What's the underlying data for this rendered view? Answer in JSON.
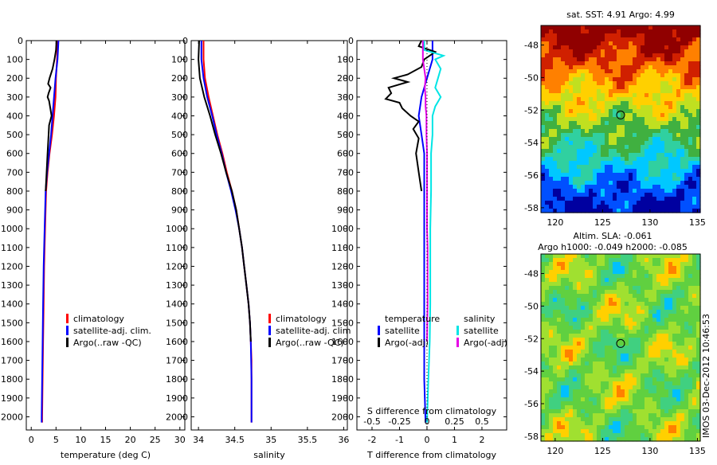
{
  "chart_data": [
    {
      "type": "line",
      "id": "temperature-profile",
      "xlabel": "temperature (deg C)",
      "ylabel": "",
      "xlim": [
        -1,
        31
      ],
      "ylim": [
        2070,
        0
      ],
      "xticks": [
        0,
        5,
        10,
        15,
        20,
        25,
        30
      ],
      "xtick_labels": [
        "0",
        "5",
        "10",
        "15",
        "20",
        "25",
        "30"
      ],
      "yticks": [
        0,
        100,
        200,
        300,
        400,
        500,
        600,
        700,
        800,
        900,
        1000,
        1100,
        1200,
        1300,
        1400,
        1500,
        1600,
        1700,
        1800,
        1900,
        2000
      ],
      "ytick_labels": [
        "0",
        "100",
        "200",
        "300",
        "400",
        "500",
        "600",
        "700",
        "800",
        "900",
        "1000",
        "1100",
        "1200",
        "1300",
        "1400",
        "1500",
        "1600",
        "1700",
        "1800",
        "1900",
        "2000"
      ],
      "legend": {
        "position": "lower-middle",
        "items": [
          {
            "label": "climatology",
            "color": "#ff0000"
          },
          {
            "label": "satellite-adj. clim.",
            "color": "#0000ff"
          },
          {
            "label": "Argo(..raw -QC)",
            "color": "#000000"
          }
        ]
      },
      "series": [
        {
          "name": "climatology",
          "color": "#ff0000",
          "points": [
            [
              5.3,
              0
            ],
            [
              5.2,
              100
            ],
            [
              5.0,
              200
            ],
            [
              4.9,
              300
            ],
            [
              4.6,
              400
            ],
            [
              4.2,
              500
            ],
            [
              3.7,
              600
            ],
            [
              3.3,
              700
            ],
            [
              3.0,
              800
            ],
            [
              2.8,
              1000
            ],
            [
              2.6,
              1200
            ],
            [
              2.5,
              1400
            ],
            [
              2.4,
              1600
            ],
            [
              2.3,
              1800
            ],
            [
              2.2,
              2000
            ],
            [
              2.2,
              2030
            ]
          ]
        },
        {
          "name": "satellite-adj. clim.",
          "color": "#0000ff",
          "points": [
            [
              5.5,
              0
            ],
            [
              5.3,
              100
            ],
            [
              4.9,
              200
            ],
            [
              4.6,
              300
            ],
            [
              4.3,
              400
            ],
            [
              4.0,
              500
            ],
            [
              3.6,
              600
            ],
            [
              3.2,
              700
            ],
            [
              2.9,
              800
            ],
            [
              2.7,
              1000
            ],
            [
              2.5,
              1200
            ],
            [
              2.4,
              1400
            ],
            [
              2.3,
              1600
            ],
            [
              2.2,
              1800
            ],
            [
              2.1,
              2000
            ],
            [
              2.1,
              2030
            ]
          ]
        },
        {
          "name": "Argo(..raw -QC)",
          "color": "#000000",
          "points": [
            [
              5.1,
              0
            ],
            [
              5.0,
              50
            ],
            [
              4.7,
              100
            ],
            [
              4.3,
              150
            ],
            [
              3.7,
              200
            ],
            [
              3.4,
              230
            ],
            [
              3.9,
              250
            ],
            [
              3.5,
              280
            ],
            [
              3.3,
              300
            ],
            [
              3.6,
              320
            ],
            [
              3.8,
              350
            ],
            [
              4.1,
              400
            ],
            [
              3.6,
              450
            ],
            [
              3.5,
              500
            ],
            [
              3.3,
              600
            ],
            [
              3.1,
              700
            ],
            [
              2.9,
              800
            ]
          ]
        }
      ]
    },
    {
      "type": "line",
      "id": "salinity-profile",
      "xlabel": "salinity",
      "ylabel": "",
      "xlim": [
        33.9,
        36.05
      ],
      "ylim": [
        2070,
        0
      ],
      "xticks": [
        34,
        34.5,
        35,
        35.5,
        36
      ],
      "xtick_labels": [
        "34",
        "34.5",
        "35",
        "35.5",
        "36"
      ],
      "legend": {
        "position": "lower-right",
        "items": [
          {
            "label": "climatology",
            "color": "#ff0000"
          },
          {
            "label": "satellite-adj. clim",
            "color": "#0000ff"
          },
          {
            "label": "Argo(..raw -QC)",
            "color": "#000000"
          }
        ]
      },
      "series": [
        {
          "name": "climatology",
          "color": "#ff0000",
          "points": [
            [
              34.07,
              0
            ],
            [
              34.07,
              100
            ],
            [
              34.09,
              200
            ],
            [
              34.14,
              300
            ],
            [
              34.2,
              400
            ],
            [
              34.26,
              500
            ],
            [
              34.33,
              600
            ],
            [
              34.39,
              700
            ],
            [
              34.46,
              800
            ],
            [
              34.52,
              900
            ],
            [
              34.56,
              1000
            ],
            [
              34.6,
              1100
            ],
            [
              34.63,
              1200
            ],
            [
              34.66,
              1300
            ],
            [
              34.69,
              1400
            ],
            [
              34.71,
              1500
            ],
            [
              34.72,
              1600
            ],
            [
              34.73,
              1700
            ],
            [
              34.73,
              1800
            ],
            [
              34.73,
              2030
            ]
          ]
        },
        {
          "name": "satellite-adj. clim.",
          "color": "#0000ff",
          "points": [
            [
              34.04,
              0
            ],
            [
              34.04,
              100
            ],
            [
              34.07,
              200
            ],
            [
              34.12,
              300
            ],
            [
              34.19,
              400
            ],
            [
              34.25,
              500
            ],
            [
              34.32,
              600
            ],
            [
              34.38,
              700
            ],
            [
              34.45,
              800
            ],
            [
              34.51,
              900
            ],
            [
              34.56,
              1000
            ],
            [
              34.6,
              1100
            ],
            [
              34.63,
              1200
            ],
            [
              34.66,
              1300
            ],
            [
              34.69,
              1400
            ],
            [
              34.71,
              1500
            ],
            [
              34.72,
              1600
            ],
            [
              34.73,
              1800
            ],
            [
              34.73,
              2030
            ]
          ]
        },
        {
          "name": "Argo(..raw -QC)",
          "color": "#000000",
          "points": [
            [
              34.01,
              0
            ],
            [
              34.0,
              100
            ],
            [
              34.02,
              200
            ],
            [
              34.08,
              300
            ],
            [
              34.16,
              400
            ],
            [
              34.23,
              500
            ],
            [
              34.31,
              600
            ],
            [
              34.38,
              700
            ],
            [
              34.46,
              800
            ],
            [
              34.52,
              900
            ],
            [
              34.56,
              1000
            ],
            [
              34.6,
              1100
            ],
            [
              34.63,
              1200
            ],
            [
              34.66,
              1300
            ],
            [
              34.69,
              1400
            ],
            [
              34.71,
              1500
            ],
            [
              34.72,
              1600
            ]
          ]
        }
      ]
    },
    {
      "type": "line",
      "id": "difference-profile",
      "xlabel": "T difference from climatology",
      "xlabel_top": "S difference from climatology",
      "xlim": [
        -2.55,
        2.9
      ],
      "ylim": [
        2070,
        0
      ],
      "xticks": [
        -2,
        -1,
        0,
        1,
        2
      ],
      "xtick_labels": [
        "-2",
        "-1",
        "0",
        "1",
        "2"
      ],
      "s_ticks": [
        -0.5,
        -0.25,
        0,
        0.25,
        0.5
      ],
      "s_tick_labels": [
        "-0.5",
        "-0.25",
        "0",
        "0.25",
        "0.5"
      ],
      "s_scale": 4,
      "legend": {
        "position": "lower",
        "items": [
          {
            "label": "temperature",
            "color": "none"
          },
          {
            "label": "satellite",
            "color": "#0000ff"
          },
          {
            "label": "Argo(-adj)",
            "color": "#000000"
          },
          {
            "label": "salinity",
            "color": "none"
          },
          {
            "label": "satellite",
            "color": "#00e5e5"
          },
          {
            "label": "Argo(-adj)",
            "color": "#e600e6"
          }
        ]
      },
      "series": [
        {
          "name": "temperature satellite",
          "color": "#0000ff",
          "points": [
            [
              0.2,
              0
            ],
            [
              0.2,
              100
            ],
            [
              0.0,
              200
            ],
            [
              -0.2,
              300
            ],
            [
              -0.3,
              400
            ],
            [
              -0.2,
              500
            ],
            [
              -0.1,
              600
            ],
            [
              -0.1,
              800
            ],
            [
              -0.1,
              1000
            ],
            [
              -0.1,
              1200
            ],
            [
              -0.1,
              1400
            ],
            [
              -0.1,
              1600
            ],
            [
              -0.1,
              1800
            ],
            [
              -0.05,
              2030
            ]
          ]
        },
        {
          "name": "temperature Argo(-adj)",
          "color": "#000000",
          "points": [
            [
              -0.2,
              0
            ],
            [
              -0.3,
              30
            ],
            [
              0.3,
              60
            ],
            [
              -0.1,
              100
            ],
            [
              -0.2,
              140
            ],
            [
              -0.7,
              180
            ],
            [
              -1.2,
              200
            ],
            [
              -0.7,
              220
            ],
            [
              -1.4,
              250
            ],
            [
              -1.3,
              280
            ],
            [
              -1.5,
              310
            ],
            [
              -1.0,
              330
            ],
            [
              -0.9,
              360
            ],
            [
              -0.6,
              400
            ],
            [
              -0.3,
              430
            ],
            [
              -0.5,
              470
            ],
            [
              -0.3,
              520
            ],
            [
              -0.4,
              600
            ],
            [
              -0.3,
              700
            ],
            [
              -0.2,
              800
            ]
          ]
        },
        {
          "name": "salinity satellite",
          "color": "#00e5e5",
          "points": [
            [
              -0.1,
              0
            ],
            [
              -0.1,
              50
            ],
            [
              0.6,
              80
            ],
            [
              0.3,
              100
            ],
            [
              0.5,
              150
            ],
            [
              0.4,
              200
            ],
            [
              0.3,
              250
            ],
            [
              0.5,
              300
            ],
            [
              0.3,
              350
            ],
            [
              0.2,
              400
            ],
            [
              0.2,
              500
            ],
            [
              0.15,
              600
            ],
            [
              0.15,
              800
            ],
            [
              0.12,
              1000
            ],
            [
              0.12,
              1100
            ],
            [
              0.12,
              1200
            ],
            [
              0.12,
              1400
            ],
            [
              0.1,
              1600
            ],
            [
              0.05,
              1800
            ],
            [
              0.0,
              2030
            ]
          ]
        },
        {
          "name": "salinity Argo(-adj)",
          "color": "#e600e6",
          "points": [
            [
              -0.15,
              0
            ],
            [
              -0.15,
              100
            ],
            [
              -0.1,
              150
            ],
            [
              -0.05,
              200
            ],
            [
              -0.08,
              250
            ],
            [
              -0.05,
              300
            ],
            [
              -0.05,
              350
            ],
            [
              -0.02,
              400
            ],
            [
              -0.02,
              500
            ],
            [
              0.0,
              600
            ],
            [
              0.0,
              700
            ],
            [
              0.0,
              800
            ],
            [
              0.0,
              900
            ],
            [
              0.0,
              1000
            ],
            [
              0.02,
              1100
            ],
            [
              0.02,
              1200
            ],
            [
              0.02,
              1300
            ],
            [
              0.02,
              1400
            ],
            [
              0.01,
              1500
            ],
            [
              0.0,
              1600
            ]
          ]
        }
      ]
    },
    {
      "type": "heatmap",
      "id": "sst-map",
      "title": "sat. SST: 4.91  Argo: 4.99",
      "xlim": [
        118.5,
        135.3
      ],
      "ylim": [
        -58.3,
        -46.8
      ],
      "xticks": [
        120,
        125,
        130,
        135
      ],
      "xtick_labels": [
        "120",
        "125",
        "130",
        "135"
      ],
      "yticks": [
        -48,
        -50,
        -52,
        -54,
        -56,
        -58
      ],
      "ytick_labels": [
        "-48",
        "-50",
        "-52",
        "-54",
        "-56",
        "-58"
      ],
      "marker": {
        "lon": 126.9,
        "lat": -52.3
      }
    },
    {
      "type": "heatmap",
      "id": "sla-map",
      "title": "Altim. SLA: -0.061",
      "subtitle": "Argo h1000: -0.049 h2000: -0.085",
      "xlim": [
        118.5,
        135.3
      ],
      "ylim": [
        -58.3,
        -46.8
      ],
      "xticks": [
        120,
        125,
        130,
        135
      ],
      "xtick_labels": [
        "120",
        "125",
        "130",
        "135"
      ],
      "yticks": [
        -48,
        -50,
        -52,
        -54,
        -56,
        -58
      ],
      "ytick_labels": [
        "-48",
        "-50",
        "-52",
        "-54",
        "-56",
        "-58"
      ],
      "marker": {
        "lon": 126.9,
        "lat": -52.3
      }
    }
  ],
  "footer": {
    "stamp": "IMOS 03-Dec-2012 10:46:53"
  },
  "colors": {
    "sst_scale": [
      "#0000a0",
      "#0050ff",
      "#00c8ff",
      "#30d0a0",
      "#40b040",
      "#c0e020",
      "#ffd000",
      "#ff8000",
      "#d02000",
      "#900000"
    ],
    "sla_scale": [
      "#0060ff",
      "#00c0ff",
      "#40d080",
      "#60d040",
      "#a0e030",
      "#ffd000",
      "#ff8000"
    ]
  }
}
